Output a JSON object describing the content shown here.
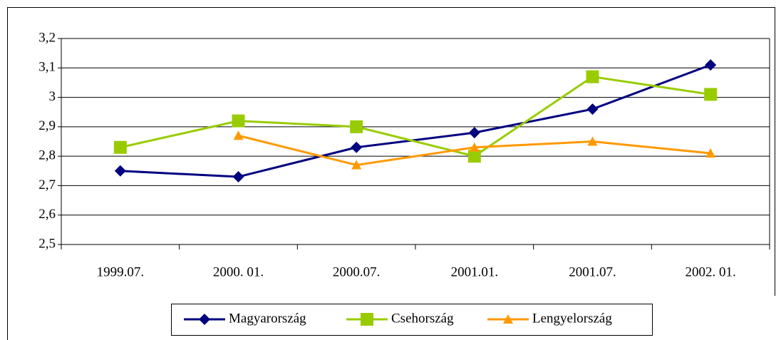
{
  "chart_data": {
    "type": "line",
    "categories": [
      "1999.07.",
      "2000. 01.",
      "2000.07.",
      "2001.01.",
      "2001.07.",
      "2002. 01."
    ],
    "series": [
      {
        "name": "Magyarország",
        "color": "#000080",
        "marker": "diamond",
        "values": [
          2.75,
          2.73,
          2.83,
          2.88,
          2.96,
          3.11
        ]
      },
      {
        "name": "Csehország",
        "color": "#99cc00",
        "marker": "square",
        "values": [
          2.83,
          2.92,
          2.9,
          2.8,
          3.07,
          3.01
        ]
      },
      {
        "name": "Lengyelország",
        "color": "#ff9900",
        "marker": "triangle",
        "values": [
          null,
          2.87,
          2.77,
          2.83,
          2.85,
          2.81
        ]
      }
    ],
    "ylim": [
      2.5,
      3.2
    ],
    "yticks": [
      {
        "value": 2.5,
        "label": "2,5"
      },
      {
        "value": 2.6,
        "label": "2,6"
      },
      {
        "value": 2.7,
        "label": "2,7"
      },
      {
        "value": 2.8,
        "label": "2,8"
      },
      {
        "value": 2.9,
        "label": "2,9"
      },
      3,
      {
        "value": 3.1,
        "label": "3,1"
      },
      {
        "value": 3.2,
        "label": "3,2"
      }
    ],
    "grid": true,
    "legend": "bottom"
  }
}
